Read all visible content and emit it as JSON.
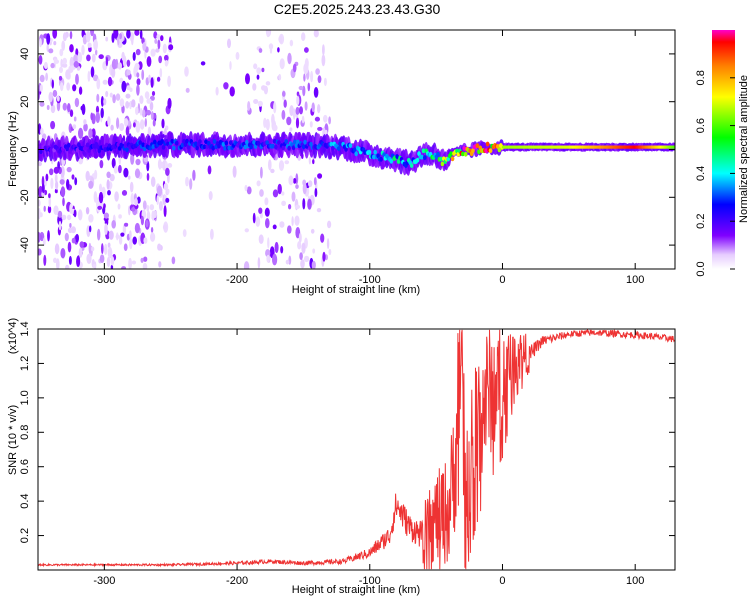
{
  "title": "C2E5.2025.243.23.43.G30",
  "chart_data": [
    {
      "type": "heatmap",
      "name": "spectrogram",
      "xlabel": "Height of straight line (km)",
      "ylabel": "Frequency (Hz)",
      "xlim": [
        -350,
        130
      ],
      "ylim": [
        -50,
        50
      ],
      "xticks": [
        -300,
        -200,
        -100,
        0,
        100
      ],
      "xtick_labels": [
        "-300",
        "-200",
        "-100",
        "0",
        "100"
      ],
      "yticks": [
        -40,
        -20,
        0,
        20,
        40
      ],
      "ytick_labels": [
        "-40",
        "-20",
        "0",
        "20",
        "40"
      ],
      "colorbar": {
        "label": "Normalized spectral amplitude",
        "range": [
          0,
          1
        ],
        "ticks": [
          0,
          0.2,
          0.4,
          0.6,
          0.8
        ],
        "tick_labels": [
          "0.0",
          "0.2",
          "0.4",
          "0.6",
          "0.8"
        ]
      },
      "ridge": {
        "x": [
          -350,
          -300,
          -250,
          -200,
          -150,
          -120,
          -100,
          -80,
          -70,
          -60,
          -50,
          -45,
          -40,
          -30,
          -20,
          -10,
          0,
          50,
          100,
          130
        ],
        "y": [
          0,
          1,
          2,
          2,
          2,
          1,
          -2,
          -4,
          -6,
          -2,
          -2,
          -5,
          -3,
          -1,
          0,
          1,
          1,
          1,
          1,
          1
        ],
        "amplitude": [
          0.2,
          0.25,
          0.3,
          0.3,
          0.3,
          0.35,
          0.4,
          0.45,
          0.45,
          0.5,
          0.55,
          0.6,
          0.8,
          0.9,
          0.95,
          1.0,
          0.65,
          0.7,
          0.95,
          0.6
        ]
      },
      "noise_extent": [
        -350,
        -130
      ]
    },
    {
      "type": "line",
      "name": "snr",
      "xlabel": "Height of straight line (km)",
      "ylabel": "SNR (10 * v/v)",
      "y_scale_label": "(x10^4)",
      "xlim": [
        -350,
        130
      ],
      "ylim": [
        0,
        1.4
      ],
      "xticks": [
        -300,
        -200,
        -100,
        0,
        100
      ],
      "xtick_labels": [
        "-300",
        "-200",
        "-100",
        "0",
        "100"
      ],
      "yticks": [
        0.2,
        0.4,
        0.6,
        0.8,
        1.0,
        1.2,
        1.4
      ],
      "ytick_labels": [
        "0.2",
        "0.4",
        "0.6",
        "0.8",
        "1.0",
        "1.2",
        "1.4"
      ],
      "color": "#ee3333",
      "series": [
        {
          "name": "SNR",
          "x": [
            -350,
            -300,
            -250,
            -200,
            -175,
            -150,
            -120,
            -100,
            -85,
            -80,
            -70,
            -60,
            -50,
            -40,
            -35,
            -32,
            -28,
            -20,
            -10,
            0,
            10,
            20,
            30,
            50,
            70,
            90,
            110,
            130
          ],
          "y": [
            0.03,
            0.03,
            0.03,
            0.04,
            0.05,
            0.04,
            0.05,
            0.1,
            0.2,
            0.38,
            0.25,
            0.2,
            0.3,
            0.35,
            0.7,
            1.32,
            0.5,
            0.85,
            1.05,
            1.1,
            1.25,
            1.25,
            1.33,
            1.37,
            1.38,
            1.37,
            1.36,
            1.34
          ],
          "noise": [
            0.005,
            0.005,
            0.006,
            0.01,
            0.012,
            0.012,
            0.015,
            0.03,
            0.06,
            0.09,
            0.08,
            0.08,
            0.12,
            0.15,
            0.2,
            0.25,
            0.18,
            0.2,
            0.18,
            0.15,
            0.08,
            0.05,
            0.03,
            0.02,
            0.02,
            0.02,
            0.02,
            0.02
          ]
        }
      ]
    }
  ]
}
